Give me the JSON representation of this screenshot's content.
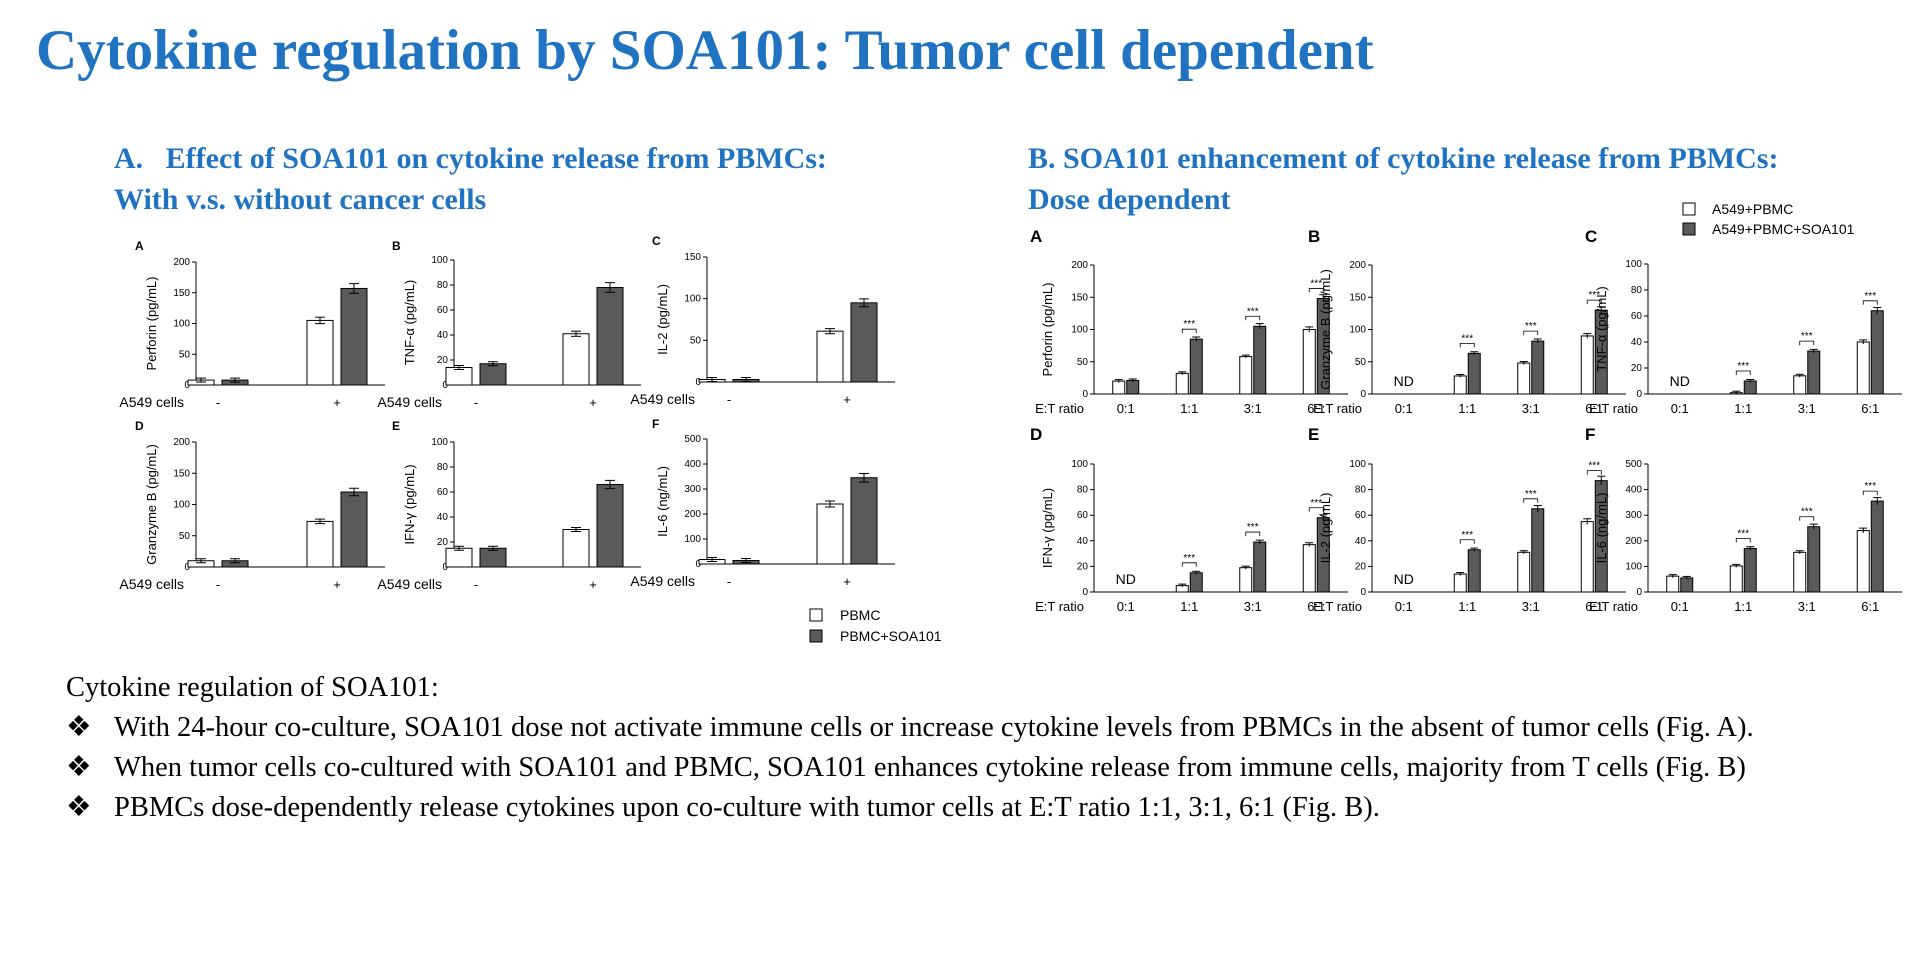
{
  "title": "Cytokine regulation by SOA101: Tumor cell dependent",
  "sectionA": {
    "line1": "A.   Effect of SOA101 on cytokine release from PBMCs:",
    "line2": "With v.s. without cancer cells"
  },
  "sectionB": {
    "line1": "B. SOA101 enhancement of cytokine release from PBMCs:",
    "line2": "Dose dependent"
  },
  "colors": {
    "title": "#1f73c0",
    "treated": "#5a5a5a",
    "control": "#ffffff"
  },
  "chart_data": [
    {
      "group": "A",
      "panel": "A",
      "type": "bar",
      "ylabel": "Perforin (pg/mL)",
      "ylim": [
        0,
        200
      ],
      "yticks": [
        0,
        50,
        100,
        150,
        200
      ],
      "xlabel": "A549 cells",
      "categories": [
        "-",
        "+"
      ],
      "series": [
        {
          "name": "PBMC",
          "values": [
            8,
            105
          ]
        },
        {
          "name": "PBMC+SOA101",
          "values": [
            8,
            157
          ]
        }
      ]
    },
    {
      "group": "A",
      "panel": "B",
      "type": "bar",
      "ylabel": "TNF-α (pg/mL)",
      "ylim": [
        0,
        100
      ],
      "yticks": [
        0,
        20,
        40,
        60,
        80,
        100
      ],
      "xlabel": "A549 cells",
      "categories": [
        "-",
        "+"
      ],
      "series": [
        {
          "name": "PBMC",
          "values": [
            14,
            41
          ]
        },
        {
          "name": "PBMC+SOA101",
          "values": [
            17,
            78
          ]
        }
      ]
    },
    {
      "group": "A",
      "panel": "C",
      "type": "bar",
      "ylabel": "IL-2 (pg/mL)",
      "ylim": [
        0,
        150
      ],
      "yticks": [
        0,
        50,
        100,
        150
      ],
      "xlabel": "A549 cells",
      "categories": [
        "-",
        "+"
      ],
      "series": [
        {
          "name": "PBMC",
          "values": [
            3,
            61
          ]
        },
        {
          "name": "PBMC+SOA101",
          "values": [
            3,
            95
          ]
        }
      ]
    },
    {
      "group": "A",
      "panel": "D",
      "type": "bar",
      "ylabel": "Granzyme B (pg/mL)",
      "ylim": [
        0,
        200
      ],
      "yticks": [
        0,
        50,
        100,
        150,
        200
      ],
      "xlabel": "A549 cells",
      "categories": [
        "-",
        "+"
      ],
      "series": [
        {
          "name": "PBMC",
          "values": [
            10,
            73
          ]
        },
        {
          "name": "PBMC+SOA101",
          "values": [
            10,
            120
          ]
        }
      ]
    },
    {
      "group": "A",
      "panel": "E",
      "type": "bar",
      "ylabel": "IFN-γ (pg/mL)",
      "ylim": [
        0,
        100
      ],
      "yticks": [
        0,
        20,
        40,
        60,
        80,
        100
      ],
      "xlabel": "A549 cells",
      "categories": [
        "-",
        "+"
      ],
      "series": [
        {
          "name": "PBMC",
          "values": [
            15,
            30
          ]
        },
        {
          "name": "PBMC+SOA101",
          "values": [
            15,
            66
          ]
        }
      ]
    },
    {
      "group": "A",
      "panel": "F",
      "type": "bar",
      "ylabel": "IL-6 (ng/mL)",
      "ylim": [
        0,
        500
      ],
      "yticks": [
        0,
        100,
        200,
        300,
        400,
        500
      ],
      "xlabel": "A549 cells",
      "categories": [
        "-",
        "+"
      ],
      "series": [
        {
          "name": "PBMC",
          "values": [
            18,
            240
          ]
        },
        {
          "name": "PBMC+SOA101",
          "values": [
            14,
            345
          ]
        }
      ]
    },
    {
      "group": "B",
      "panel": "A",
      "type": "bar",
      "ylabel": "Perforin (pg/mL)",
      "ylim": [
        0,
        200
      ],
      "yticks": [
        0,
        50,
        100,
        150,
        200
      ],
      "xlabel": "E:T ratio",
      "categories": [
        "0:1",
        "1:1",
        "3:1",
        "6:1"
      ],
      "series": [
        {
          "name": "A549+PBMC",
          "values": [
            20,
            32,
            58,
            100
          ]
        },
        {
          "name": "A549+PBMC+SOA101",
          "values": [
            21,
            85,
            105,
            148
          ]
        }
      ],
      "significance": [
        "",
        "***",
        "***",
        "***"
      ],
      "nd": []
    },
    {
      "group": "B",
      "panel": "B",
      "type": "bar",
      "ylabel": "Granzyme B (pg/mL)",
      "ylim": [
        0,
        200
      ],
      "yticks": [
        0,
        50,
        100,
        150,
        200
      ],
      "xlabel": "E:T ratio",
      "categories": [
        "0:1",
        "1:1",
        "3:1",
        "6:1"
      ],
      "series": [
        {
          "name": "A549+PBMC",
          "values": [
            0,
            28,
            48,
            90
          ]
        },
        {
          "name": "A549+PBMC+SOA101",
          "values": [
            0,
            63,
            82,
            130
          ]
        }
      ],
      "significance": [
        "",
        "***",
        "***",
        "***"
      ],
      "nd": [
        "0:1"
      ]
    },
    {
      "group": "B",
      "panel": "C",
      "type": "bar",
      "ylabel": "TNF-α (pg/mL)",
      "ylim": [
        0,
        100
      ],
      "yticks": [
        0,
        20,
        40,
        60,
        80,
        100
      ],
      "xlabel": "E:T ratio",
      "categories": [
        "0:1",
        "1:1",
        "3:1",
        "6:1"
      ],
      "series": [
        {
          "name": "A549+PBMC",
          "values": [
            0,
            1,
            14,
            40
          ]
        },
        {
          "name": "A549+PBMC+SOA101",
          "values": [
            0,
            10,
            33,
            64
          ]
        }
      ],
      "significance": [
        "",
        "***",
        "***",
        "***"
      ],
      "nd": [
        "0:1"
      ]
    },
    {
      "group": "B",
      "panel": "D",
      "type": "bar",
      "ylabel": "IFN-γ (pg/mL)",
      "ylim": [
        0,
        100
      ],
      "yticks": [
        0,
        20,
        40,
        60,
        80,
        100
      ],
      "xlabel": "E:T ratio",
      "categories": [
        "0:1",
        "1:1",
        "3:1",
        "6:1"
      ],
      "series": [
        {
          "name": "A549+PBMC",
          "values": [
            0,
            5,
            19,
            37
          ]
        },
        {
          "name": "A549+PBMC+SOA101",
          "values": [
            0,
            15,
            39,
            58
          ]
        }
      ],
      "significance": [
        "",
        "***",
        "***",
        "***"
      ],
      "nd": [
        "0:1"
      ]
    },
    {
      "group": "B",
      "panel": "E",
      "type": "bar",
      "ylabel": "IL-2 (pg/mL)",
      "ylim": [
        0,
        100
      ],
      "yticks": [
        0,
        20,
        40,
        60,
        80,
        100
      ],
      "xlabel": "E:T ratio",
      "categories": [
        "0:1",
        "1:1",
        "3:1",
        "6:1"
      ],
      "series": [
        {
          "name": "A549+PBMC",
          "values": [
            0,
            14,
            31,
            55
          ]
        },
        {
          "name": "A549+PBMC+SOA101",
          "values": [
            0,
            33,
            65,
            87
          ]
        }
      ],
      "significance": [
        "",
        "***",
        "***",
        "***"
      ],
      "nd": [
        "0:1"
      ]
    },
    {
      "group": "B",
      "panel": "F",
      "type": "bar",
      "ylabel": "IL-6 (ng/mL)",
      "ylim": [
        0,
        500
      ],
      "yticks": [
        0,
        100,
        200,
        300,
        400,
        500
      ],
      "xlabel": "E:T ratio",
      "categories": [
        "0:1",
        "1:1",
        "3:1",
        "6:1"
      ],
      "series": [
        {
          "name": "A549+PBMC",
          "values": [
            62,
            102,
            155,
            240
          ]
        },
        {
          "name": "A549+PBMC+SOA101",
          "values": [
            55,
            170,
            255,
            355
          ]
        }
      ],
      "significance": [
        "",
        "***",
        "***",
        "***"
      ],
      "nd": []
    }
  ],
  "legendA": [
    "PBMC",
    "PBMC+SOA101"
  ],
  "legendB": [
    "A549+PBMC",
    "A549+PBMC+SOA101"
  ],
  "notes": {
    "heading": "Cytokine regulation of SOA101:",
    "bullet_symbol": "❖",
    "bullets": [
      "With 24-hour co-culture, SOA101 dose not activate immune cells or increase cytokine levels from PBMCs in the absent of tumor cells (Fig. A).",
      "When tumor cells co-cultured with SOA101 and PBMC, SOA101 enhances cytokine release from immune cells, majority from T cells (Fig. B)",
      "PBMCs dose-dependently release cytokines upon co-culture with tumor cells at E:T ratio 1:1, 3:1, 6:1 (Fig. B)."
    ]
  }
}
